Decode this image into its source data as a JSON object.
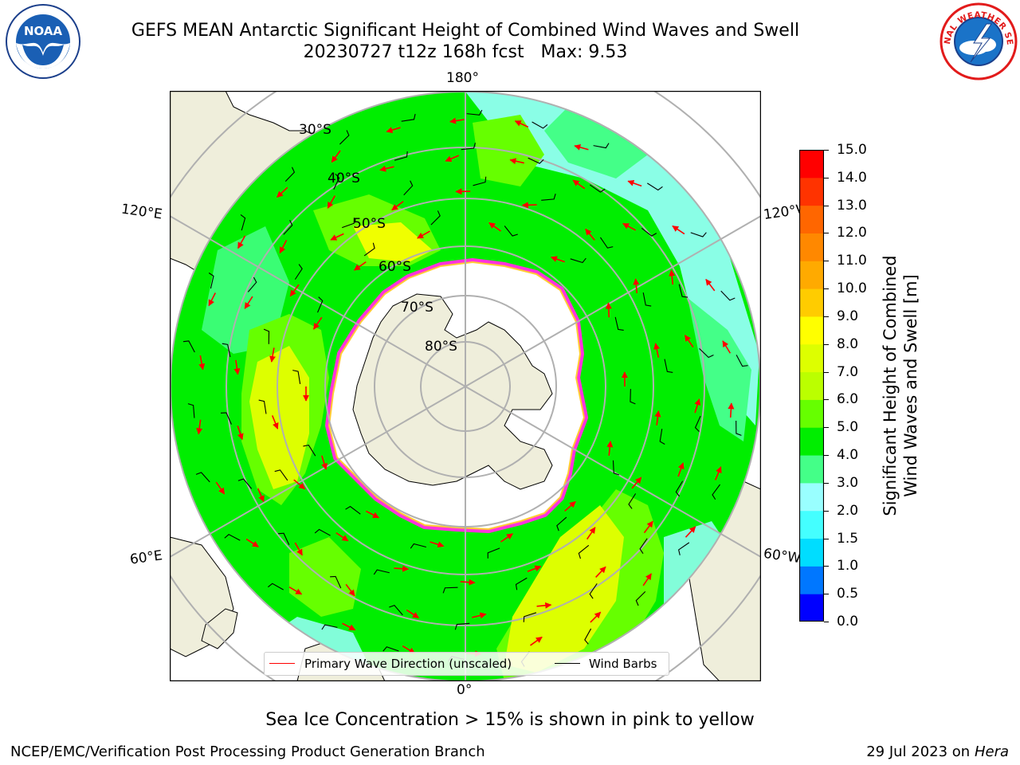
{
  "title": {
    "line1": "GEFS MEAN Antarctic Significant Height of Combined Wind Waves and Swell",
    "line2": "20230727 t12z 168h fcst   Max: 9.53"
  },
  "map": {
    "projection": "south-polar-stereographic",
    "edge_labels": {
      "top": "180°",
      "bottom": "0°",
      "left_top": "120°E",
      "right_top": "120°W",
      "left_bottom": "60°E",
      "right_bottom": "60°W"
    },
    "latitude_labels": [
      "30°S",
      "40°S",
      "50°S",
      "60°S",
      "70°S",
      "80°S"
    ],
    "colors": {
      "land": "#efeedb",
      "ice_free_antarctic": "#ffffff",
      "grid": "#b0b0b0",
      "wave_arrow": "#ff0000",
      "wind_barb": "#000000",
      "sea_ice": "#ff33dd"
    }
  },
  "legend": {
    "wave_label": "Primary Wave Direction (unscaled)",
    "barb_label": "Wind Barbs"
  },
  "colorbar": {
    "label_line1": "Significant Height of Combined",
    "label_line2": "Wind Waves and Swell [m]",
    "ticks": [
      "0.0",
      "0.5",
      "1.0",
      "1.5",
      "2.0",
      "3.0",
      "4.0",
      "5.0",
      "6.0",
      "7.0",
      "8.0",
      "9.0",
      "10.0",
      "11.0",
      "12.0",
      "13.0",
      "14.0",
      "15.0"
    ],
    "colors": [
      "#0000ff",
      "#0077ff",
      "#00ddff",
      "#44ffff",
      "#99ffff",
      "#44ff88",
      "#00ee00",
      "#66ff00",
      "#bbff00",
      "#ddff00",
      "#ffff00",
      "#ffcc00",
      "#ffaa00",
      "#ff8800",
      "#ff6600",
      "#ff3300",
      "#ff0000"
    ]
  },
  "note": "Sea Ice Concentration > 15% is shown in pink to yellow",
  "footer": {
    "left": "NCEP/EMC/Verification Post Processing Product Generation Branch",
    "date": "29 Jul 2023 on ",
    "host": "Hera"
  },
  "logos": {
    "noaa": "NOAA",
    "nws_text": "NATIONAL WEATHER SERVICE"
  }
}
